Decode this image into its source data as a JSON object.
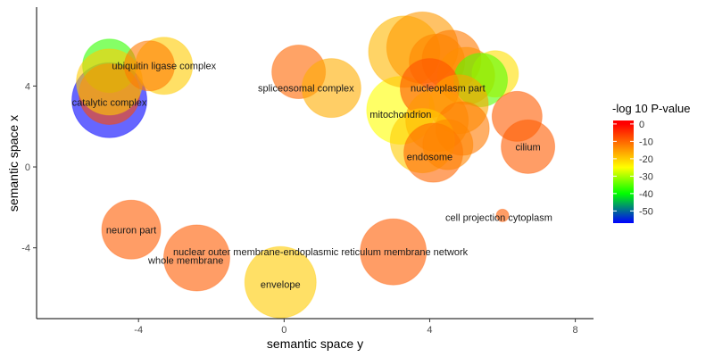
{
  "chart_data": {
    "type": "scatter",
    "xlabel": "semantic space y",
    "ylabel": "semantic space x",
    "xlim": [
      -6.8,
      8.5
    ],
    "ylim": [
      -7.5,
      7.9
    ],
    "xticks": [
      -4,
      0,
      4,
      8
    ],
    "yticks": [
      -4,
      0,
      4
    ],
    "grid": false,
    "legend": {
      "title": "-log 10 P-value",
      "placement": "right",
      "range": [
        -57,
        2
      ],
      "ticks": [
        0,
        -10,
        -20,
        -30,
        -40,
        -50
      ],
      "stops": [
        {
          "value": 0,
          "color": "#ff0000"
        },
        {
          "value": -15,
          "color": "#ff9900"
        },
        {
          "value": -25,
          "color": "#ffff00"
        },
        {
          "value": -40,
          "color": "#00ff00"
        },
        {
          "value": -57,
          "color": "#0000ff"
        }
      ]
    },
    "points": [
      {
        "x": -4.8,
        "y": 3.3,
        "size": 42,
        "pvalue": -57,
        "label": ""
      },
      {
        "x": -4.8,
        "y": 5.0,
        "size": 30,
        "pvalue": -37,
        "label": ""
      },
      {
        "x": -4.8,
        "y": 3.6,
        "size": 34,
        "pvalue": -7,
        "label": ""
      },
      {
        "x": -4.8,
        "y": 4.2,
        "size": 37,
        "pvalue": -20,
        "label": "catalytic complex",
        "lx": -4.8,
        "ly": 3.2
      },
      {
        "x": -3.3,
        "y": 5.0,
        "size": 32,
        "pvalue": -20,
        "label": ""
      },
      {
        "x": -3.7,
        "y": 5.0,
        "size": 28,
        "pvalue": -12,
        "label": "ubiquitin ligase complex",
        "lx": -3.3,
        "ly": 5.0
      },
      {
        "x": 0.4,
        "y": 4.7,
        "size": 30,
        "pvalue": -10,
        "label": ""
      },
      {
        "x": 1.3,
        "y": 3.9,
        "size": 33,
        "pvalue": -17,
        "label": "spliceosomal complex",
        "lx": 0.6,
        "ly": 3.9
      },
      {
        "x": 3.2,
        "y": 2.8,
        "size": 38,
        "pvalue": -25,
        "label": "mitochondrion",
        "lx": 3.2,
        "ly": 2.6
      },
      {
        "x": 3.3,
        "y": 5.7,
        "size": 40,
        "pvalue": -18,
        "label": ""
      },
      {
        "x": 3.8,
        "y": 5.9,
        "size": 40,
        "pvalue": -15,
        "label": ""
      },
      {
        "x": 4.6,
        "y": 5.3,
        "size": 33,
        "pvalue": -12,
        "label": ""
      },
      {
        "x": 4.2,
        "y": 5.2,
        "size": 31,
        "pvalue": -13,
        "label": ""
      },
      {
        "x": 5.0,
        "y": 4.5,
        "size": 32,
        "pvalue": -14,
        "label": ""
      },
      {
        "x": 5.8,
        "y": 4.6,
        "size": 26,
        "pvalue": -22,
        "label": ""
      },
      {
        "x": 5.4,
        "y": 4.3,
        "size": 30,
        "pvalue": -35,
        "label": ""
      },
      {
        "x": 4.0,
        "y": 3.9,
        "size": 33,
        "pvalue": -8,
        "label": "nucleoplasm part",
        "lx": 4.5,
        "ly": 3.9
      },
      {
        "x": 4.8,
        "y": 3.1,
        "size": 33,
        "pvalue": -16,
        "label": ""
      },
      {
        "x": 4.2,
        "y": 2.3,
        "size": 35,
        "pvalue": -15,
        "label": ""
      },
      {
        "x": 4.9,
        "y": 1.9,
        "size": 30,
        "pvalue": -12,
        "label": ""
      },
      {
        "x": 3.8,
        "y": 1.3,
        "size": 36,
        "pvalue": -20,
        "label": ""
      },
      {
        "x": 4.1,
        "y": 0.7,
        "size": 33,
        "pvalue": -10,
        "label": "endosome",
        "lx": 4.0,
        "ly": 0.5
      },
      {
        "x": 4.5,
        "y": 1.1,
        "size": 28,
        "pvalue": -13,
        "label": ""
      },
      {
        "x": 6.4,
        "y": 2.5,
        "size": 28,
        "pvalue": -9,
        "label": ""
      },
      {
        "x": 6.7,
        "y": 1.0,
        "size": 30,
        "pvalue": -9,
        "label": "cilium",
        "lx": 6.7,
        "ly": 1.0
      },
      {
        "x": 6.0,
        "y": -2.4,
        "size": 7,
        "pvalue": -9,
        "label": "cell projection cytoplasm",
        "lx": 5.9,
        "ly": -2.5
      },
      {
        "x": -4.2,
        "y": -3.1,
        "size": 33,
        "pvalue": -9,
        "label": "neuron part",
        "lx": -4.2,
        "ly": -3.1
      },
      {
        "x": -2.4,
        "y": -4.5,
        "size": 37,
        "pvalue": -9,
        "label": "whole membrane",
        "lx": -2.7,
        "ly": -4.6
      },
      {
        "x": 3.0,
        "y": -4.2,
        "size": 37,
        "pvalue": -9,
        "label": "nuclear outer membrane-endoplasmic reticulum membrane network",
        "lx": 1.0,
        "ly": -4.2
      },
      {
        "x": -0.1,
        "y": -5.7,
        "size": 40,
        "pvalue": -20,
        "label": "envelope",
        "lx": -0.1,
        "ly": -5.8
      }
    ]
  }
}
